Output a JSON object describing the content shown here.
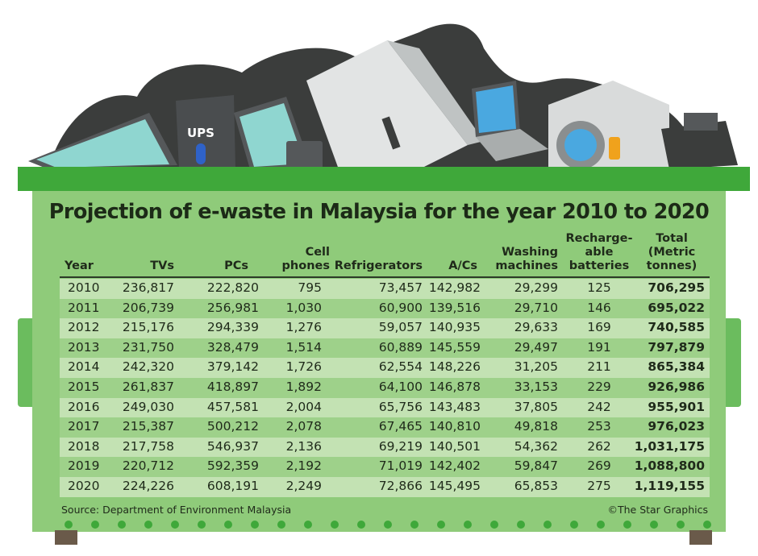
{
  "chart_data": {
    "type": "table",
    "title": "Projection of e-waste in Malaysia for the year 2010 to 2020",
    "columns": [
      "Year",
      "TVs",
      "PCs",
      "Cell phones",
      "Refrigerators",
      "A/Cs",
      "Washing machines",
      "Recharge-able batteries",
      "Total (Metric tonnes)"
    ],
    "header_lines": [
      [
        "Year"
      ],
      [
        "TVs"
      ],
      [
        "PCs"
      ],
      [
        "Cell",
        "phones"
      ],
      [
        "Refrigerators"
      ],
      [
        "A/Cs"
      ],
      [
        "Washing",
        "machines"
      ],
      [
        "Recharge-",
        "able",
        "batteries"
      ],
      [
        "Total",
        "(Metric",
        "tonnes)"
      ]
    ],
    "rows": [
      [
        "2010",
        "236,817",
        "222,820",
        "795",
        "73,457",
        "142,982",
        "29,299",
        "125",
        "706,295"
      ],
      [
        "2011",
        "206,739",
        "256,981",
        "1,030",
        "60,900",
        "139,516",
        "29,710",
        "146",
        "695,022"
      ],
      [
        "2012",
        "215,176",
        "294,339",
        "1,276",
        "59,057",
        "140,935",
        "29,633",
        "169",
        "740,585"
      ],
      [
        "2013",
        "231,750",
        "328,479",
        "1,514",
        "60,889",
        "145,559",
        "29,497",
        "191",
        "797,879"
      ],
      [
        "2014",
        "242,320",
        "379,142",
        "1,726",
        "62,554",
        "148,226",
        "31,205",
        "211",
        "865,384"
      ],
      [
        "2015",
        "261,837",
        "418,897",
        "1,892",
        "64,100",
        "146,878",
        "33,153",
        "229",
        "926,986"
      ],
      [
        "2016",
        "249,030",
        "457,581",
        "2,004",
        "65,756",
        "143,483",
        "37,805",
        "242",
        "955,901"
      ],
      [
        "2017",
        "215,387",
        "500,212",
        "2,078",
        "67,465",
        "140,810",
        "49,818",
        "253",
        "976,023"
      ],
      [
        "2018",
        "217,758",
        "546,937",
        "2,136",
        "69,219",
        "140,501",
        "54,362",
        "262",
        "1,031,175"
      ],
      [
        "2019",
        "220,712",
        "592,359",
        "2,192",
        "71,019",
        "142,402",
        "59,847",
        "269",
        "1,088,800"
      ],
      [
        "2020",
        "224,226",
        "608,191",
        "2,249",
        "72,866",
        "145,495",
        "65,853",
        "275",
        "1,119,155"
      ]
    ],
    "source": "Source: Department of Environment Malaysia",
    "credit": "©The Star Graphics",
    "ups_label": "UPS"
  },
  "colors": {
    "bin_body": "#8fcb7a",
    "bin_lid": "#3fa83a",
    "row_light": "#c3e2b3",
    "row_dark": "#9ed18a",
    "bags": "#3b3d3c"
  }
}
